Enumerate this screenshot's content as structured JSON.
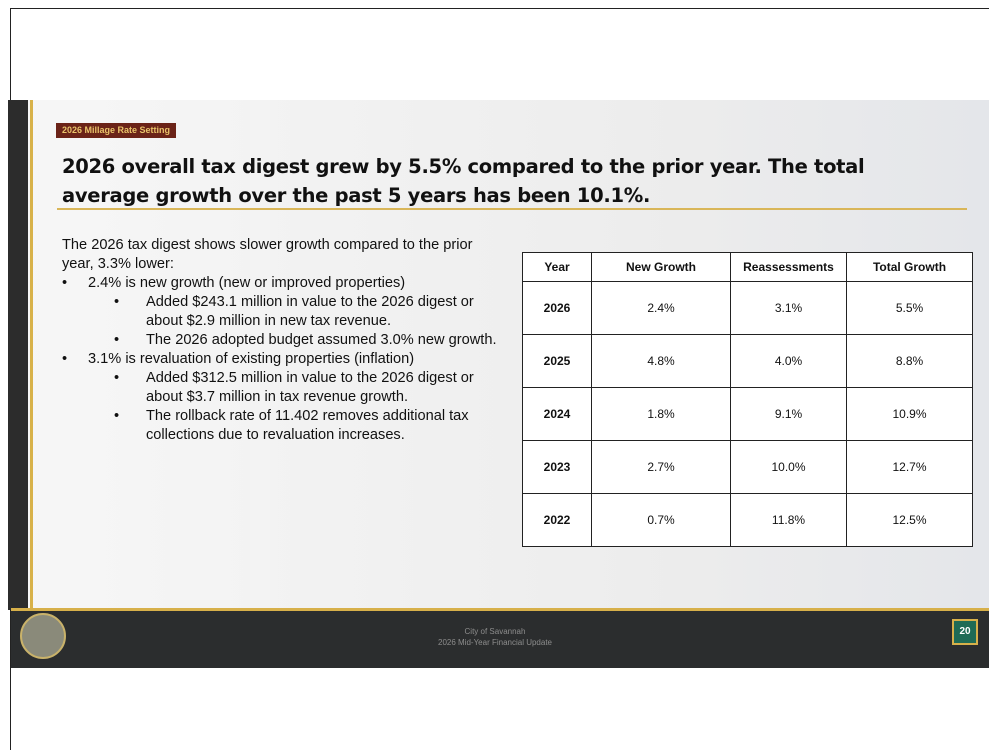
{
  "header": {
    "tag": "2026 Millage Rate Setting",
    "title": "2026 overall tax digest grew by 5.5% compared to the prior year. The total average growth over the past 5 years has been 10.1%."
  },
  "body": {
    "intro": "The 2026 tax digest shows slower growth compared to the prior year, 3.3% lower:",
    "bullets": [
      {
        "text": "2.4% is new growth (new or improved properties)",
        "sub": [
          "Added $243.1 million in value to the 2026 digest or about $2.9 million in new tax revenue.",
          "The 2026 adopted budget assumed 3.0% new growth."
        ]
      },
      {
        "text": "3.1% is revaluation of existing properties (inflation)",
        "sub": [
          "Added $312.5 million in value to the 2026 digest or about $3.7 million in tax revenue growth.",
          "The rollback rate of 11.402 removes additional tax collections due to revaluation increases."
        ]
      }
    ]
  },
  "table": {
    "columns": [
      "Year",
      "New Growth",
      "Reassessments",
      "Total Growth"
    ],
    "rows": [
      [
        "2026",
        "2.4%",
        "3.1%",
        "5.5%"
      ],
      [
        "2025",
        "4.8%",
        "4.0%",
        "8.8%"
      ],
      [
        "2024",
        "1.8%",
        "9.1%",
        "10.9%"
      ],
      [
        "2023",
        "2.7%",
        "10.0%",
        "12.7%"
      ],
      [
        "2022",
        "0.7%",
        "11.8%",
        "12.5%"
      ]
    ]
  },
  "footer": {
    "lines": [
      "City of Savannah",
      "2026 Mid-Year Financial Update"
    ],
    "page": "20"
  }
}
